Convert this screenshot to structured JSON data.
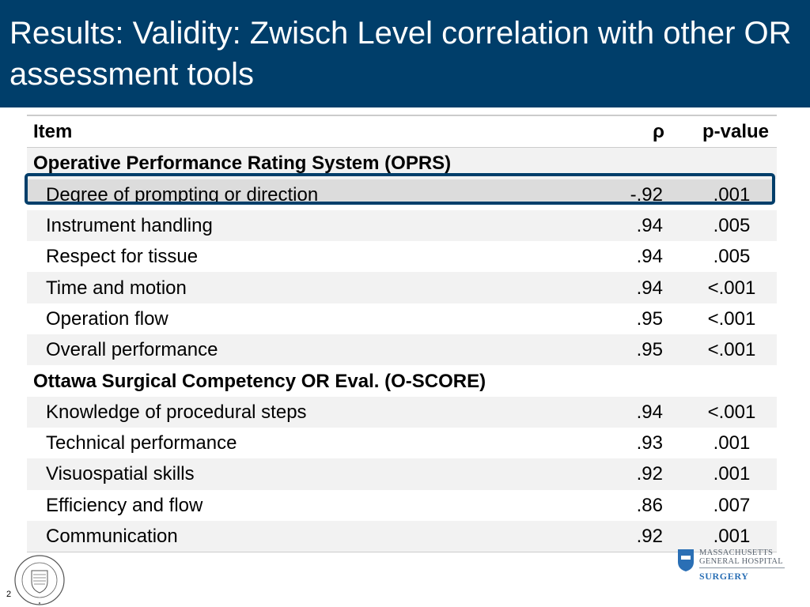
{
  "slide": {
    "title": "Results: Validity: Zwisch Level correlation with other OR assessment tools",
    "page_number": "2"
  },
  "table": {
    "headers": [
      "Item",
      "ρ",
      "p-value"
    ],
    "sections": [
      {
        "name": "Operative Performance Rating System (OPRS)",
        "rows": [
          {
            "item": "Degree of prompting or direction",
            "rho": "-.92",
            "p": ".001",
            "highlighted": true
          },
          {
            "item": "Instrument handling",
            "rho": ".94",
            "p": ".005"
          },
          {
            "item": "Respect for tissue",
            "rho": ".94",
            "p": ".005"
          },
          {
            "item": "Time and motion",
            "rho": ".94",
            "p": "<.001"
          },
          {
            "item": "Operation flow",
            "rho": ".95",
            "p": "<.001"
          },
          {
            "item": "Overall performance",
            "rho": ".95",
            "p": "<.001"
          }
        ]
      },
      {
        "name": "Ottawa Surgical Competency OR Eval. (O-SCORE)",
        "rows": [
          {
            "item": "Knowledge of procedural steps",
            "rho": ".94",
            "p": "<.001"
          },
          {
            "item": "Technical performance",
            "rho": ".93",
            "p": ".001"
          },
          {
            "item": "Visuospatial skills",
            "rho": ".92",
            "p": ".001"
          },
          {
            "item": "Efficiency and flow",
            "rho": ".86",
            "p": ".007"
          },
          {
            "item": "Communication",
            "rho": ".92",
            "p": ".001"
          }
        ]
      }
    ]
  },
  "logos": {
    "mgh_line1": "MASSACHUSETTS",
    "mgh_line2": "GENERAL HOSPITAL",
    "mgh_dept": "SURGERY",
    "seal_text": "NORTHWESTERN UNIVERSITY"
  },
  "colors": {
    "title_bg": "#003e6a",
    "highlight_border": "#003e6a",
    "row_shade": "#f2f2f2"
  }
}
